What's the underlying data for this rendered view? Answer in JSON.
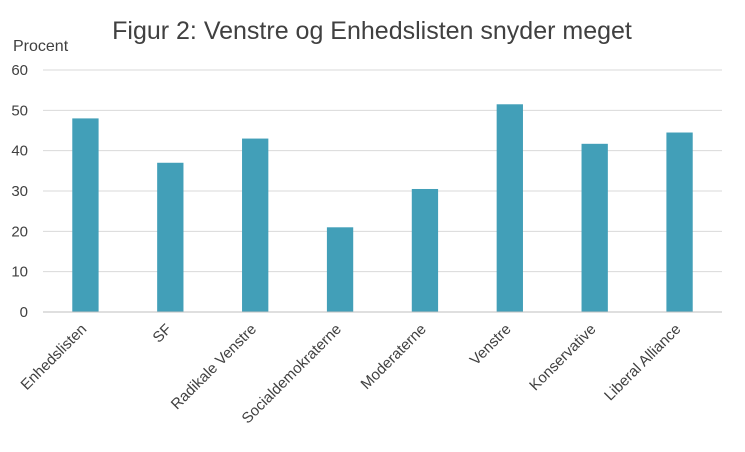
{
  "chart_data": {
    "type": "bar",
    "title": "Figur 2: Venstre og Enhedslisten snyder meget",
    "ylabel": "Procent",
    "xlabel": "",
    "ylim": [
      0,
      60
    ],
    "yticks": [
      0,
      10,
      20,
      30,
      40,
      50,
      60
    ],
    "grid": true,
    "legend": "none",
    "bar_color": "#429fb8",
    "categories": [
      "Enhedslisten",
      "SF",
      "Radikale Venstre",
      "Socialdemokraterne",
      "Moderaterne",
      "Venstre",
      "Konservative",
      "Liberal Alliance"
    ],
    "values": [
      48,
      37,
      43,
      21,
      30.5,
      51.5,
      41.7,
      44.5
    ]
  }
}
